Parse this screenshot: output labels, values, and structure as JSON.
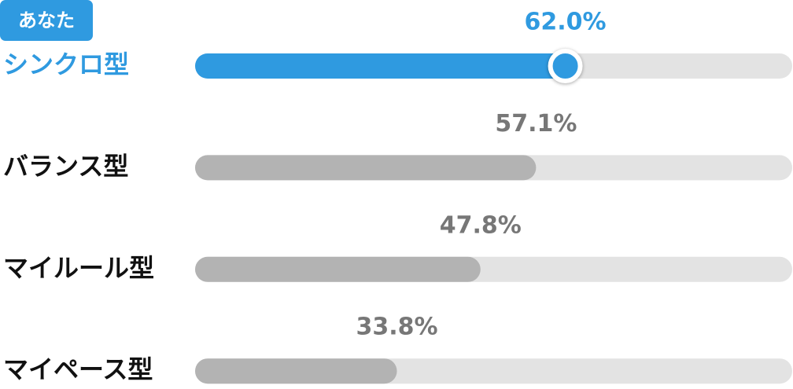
{
  "chart_data": {
    "type": "bar",
    "orientation": "horizontal",
    "annotation": "あなた",
    "categories": [
      "シンクロ型",
      "バランス型",
      "マイルール型",
      "マイペース型"
    ],
    "values": [
      62.0,
      57.1,
      47.8,
      33.8
    ],
    "value_labels": [
      "62.0%",
      "57.1%",
      "47.8%",
      "33.8%"
    ],
    "xlim": [
      0,
      100
    ],
    "highlight_index": 0,
    "highlight_color": "#2f9ae0",
    "color": "#b3b3b3",
    "track_color": "#e3e3e3"
  }
}
